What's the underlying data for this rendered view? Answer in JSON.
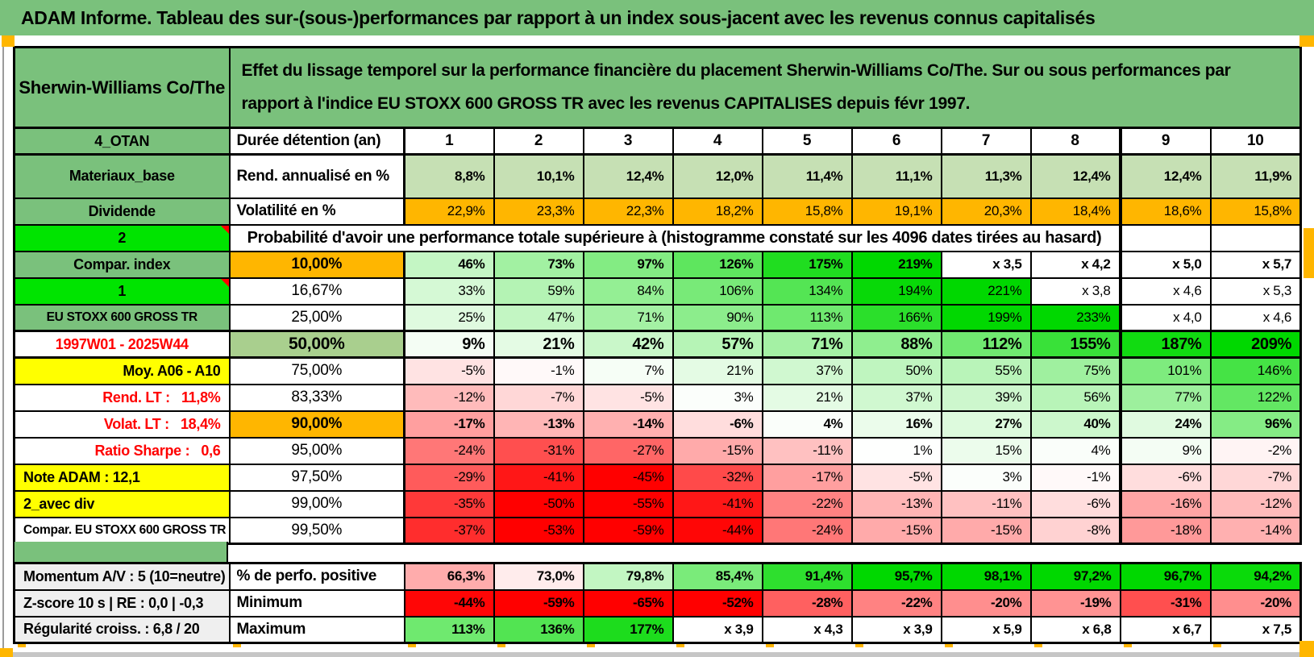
{
  "palette": {
    "header_green": "#7AC17C",
    "label_green": "#7AC17C",
    "sage": "#A9CF8E",
    "light_green": "#C6E0B4",
    "bright_green": "#00E400",
    "orange": "#FFB600",
    "yellow": "#FFFF00",
    "gray_label": "#EFEFEF",
    "red_text": "#FF0000",
    "pos_end": "#00D800",
    "neg_end": "#FF0000",
    "bottom_bar": "#C6C6C6",
    "edge_line": "#9B9B9B"
  },
  "title": "ADAM Informe. Tableau des sur-(sous-)performances par rapport à un index sous-jacent avec les revenus connus capitalisés",
  "workbook": {
    "stock_name": "Sherwin-Williams Co/The",
    "description": "Effet du lissage temporel sur la performance financière du placement Sherwin-Williams Co/The. Sur ou sous performances par rapport à l'indice EU STOXX 600 GROSS TR avec les revenus CAPITALISES depuis févr 1997."
  },
  "table": {
    "rows": [
      {
        "header": true,
        "bold": true,
        "cell_bg": "white",
        "left": {
          "text": "4_OTAN",
          "bg": "green"
        },
        "mid": {
          "text": "Durée détention (an)",
          "align": "left",
          "bold": true
        },
        "cells": [
          "1",
          "2",
          "3",
          "4",
          "5",
          "6",
          "7",
          "8",
          "9",
          "10"
        ]
      },
      {
        "tall": true,
        "bold": true,
        "cell_bg": "lightgreen",
        "left": {
          "text": "Materiaux_base",
          "bg": "green"
        },
        "mid": {
          "text": "Rend. annualisé en %",
          "align": "left",
          "bold": true
        },
        "cells": [
          "8,8%",
          "10,1%",
          "12,4%",
          "12,0%",
          "11,4%",
          "11,1%",
          "11,3%",
          "12,4%",
          "12,4%",
          "11,9%"
        ]
      },
      {
        "cell_bg": "orange",
        "left": {
          "text": "Dividende",
          "bg": "green"
        },
        "mid": {
          "text": "Volatilité en %",
          "align": "left",
          "bold": true
        },
        "cells": [
          "22,9%",
          "23,3%",
          "22,3%",
          "18,2%",
          "15,8%",
          "19,1%",
          "20,3%",
          "18,4%",
          "18,6%",
          "15,8%"
        ]
      },
      {
        "type": "merged",
        "left": {
          "text": "2",
          "bg": "bright",
          "marker": true
        },
        "merged": "Probabilité d'avoir une performance totale supérieure à (histogramme constaté sur les 4096 dates tirées au hasard)"
      },
      {
        "bold": true,
        "scale": "main",
        "left": {
          "text": "Compar. index",
          "bg": "green"
        },
        "mid": {
          "text": "10,00%",
          "bg": "orangebg",
          "bold": true
        },
        "cells": [
          "46%",
          "73%",
          "97%",
          "126%",
          "175%",
          "219%",
          "x 3,5",
          "x 4,2",
          "x 5,0",
          "x 5,7"
        ]
      },
      {
        "scale": "main",
        "left": {
          "text": "1",
          "bg": "bright",
          "marker": true
        },
        "mid": {
          "text": "16,67%"
        },
        "cells": [
          "33%",
          "59%",
          "84%",
          "106%",
          "134%",
          "194%",
          "221%",
          "x 3,8",
          "x 4,6",
          "x 5,3"
        ]
      },
      {
        "scale": "main",
        "left": {
          "text": "EU STOXX 600 GROSS TR",
          "bg": "green",
          "small": true
        },
        "mid": {
          "text": "25,00%"
        },
        "cells": [
          "25%",
          "47%",
          "71%",
          "90%",
          "113%",
          "166%",
          "199%",
          "233%",
          "x 4,0",
          "x 4,6"
        ]
      },
      {
        "big": true,
        "bold": true,
        "scale": "main",
        "left": {
          "text": "1997W01 - 2025W44",
          "bg": "whitebg",
          "color": "red"
        },
        "mid": {
          "text": "50,00%",
          "bg": "sage",
          "bold": true,
          "big": true
        },
        "cells": [
          "9%",
          "21%",
          "42%",
          "57%",
          "71%",
          "88%",
          "112%",
          "155%",
          "187%",
          "209%"
        ]
      },
      {
        "scale": "main",
        "left": {
          "text": "Moy. A06 - A10",
          "bg": "yellow",
          "align": "right"
        },
        "mid": {
          "text": "75,00%"
        },
        "cells": [
          "-5%",
          "-1%",
          "7%",
          "21%",
          "37%",
          "50%",
          "55%",
          "75%",
          "101%",
          "146%"
        ]
      },
      {
        "scale": "main",
        "left": {
          "text": "Rend. LT :   11,8%",
          "bg": "whitebg",
          "color": "red",
          "align": "right"
        },
        "mid": {
          "text": "83,33%"
        },
        "cells": [
          "-12%",
          "-7%",
          "-5%",
          "3%",
          "21%",
          "37%",
          "39%",
          "56%",
          "77%",
          "122%"
        ]
      },
      {
        "bold": true,
        "scale": "main",
        "left": {
          "text": "Volat. LT :   18,4%",
          "bg": "whitebg",
          "color": "red",
          "align": "right"
        },
        "mid": {
          "text": "90,00%",
          "bg": "orangebg",
          "bold": true
        },
        "cells": [
          "-17%",
          "-13%",
          "-14%",
          "-6%",
          "4%",
          "16%",
          "27%",
          "40%",
          "24%",
          "96%"
        ]
      },
      {
        "scale": "main",
        "left": {
          "text": "Ratio Sharpe :   0,6",
          "bg": "whitebg",
          "color": "red",
          "align": "right"
        },
        "mid": {
          "text": "95,00%"
        },
        "cells": [
          "-24%",
          "-31%",
          "-27%",
          "-15%",
          "-11%",
          "1%",
          "15%",
          "4%",
          "9%",
          "-2%"
        ]
      },
      {
        "scale": "main",
        "left": {
          "text": "Note ADAM : 12,1",
          "bg": "yellow",
          "align": "left"
        },
        "mid": {
          "text": "97,50%"
        },
        "cells": [
          "-29%",
          "-41%",
          "-45%",
          "-32%",
          "-17%",
          "-5%",
          "3%",
          "-1%",
          "-6%",
          "-7%"
        ]
      },
      {
        "scale": "main",
        "left": {
          "text": "2_avec div",
          "bg": "yellow",
          "align": "left"
        },
        "mid": {
          "text": "99,00%"
        },
        "cells": [
          "-35%",
          "-50%",
          "-55%",
          "-41%",
          "-22%",
          "-13%",
          "-11%",
          "-6%",
          "-16%",
          "-12%"
        ]
      },
      {
        "scale": "main",
        "left": {
          "text": "Compar. EU STOXX 600 GROSS TR",
          "bg": "whitebg",
          "align": "left",
          "small": true
        },
        "mid": {
          "text": "99,50%"
        },
        "cells": [
          "-37%",
          "-53%",
          "-59%",
          "-44%",
          "-24%",
          "-15%",
          "-15%",
          "-8%",
          "-18%",
          "-14%"
        ]
      }
    ]
  },
  "bottom": {
    "rows": [
      {
        "bold": true,
        "scale": "perfo",
        "left": {
          "text": "Momentum A/V : 5 (10=neutre)",
          "bg": "graybg",
          "align": "left"
        },
        "mid": {
          "text": "% de perfo. positive",
          "align": "left",
          "bold": true
        },
        "cells": [
          "66,3%",
          "73,0%",
          "79,8%",
          "85,4%",
          "91,4%",
          "95,7%",
          "98,1%",
          "97,2%",
          "96,7%",
          "94,2%"
        ]
      },
      {
        "bold": true,
        "scale": "main",
        "left": {
          "text": "Z-score 10 s | RE : 0,0 | -0,3",
          "bg": "graybg",
          "align": "left"
        },
        "mid": {
          "text": "Minimum",
          "align": "left",
          "bold": true
        },
        "cells": [
          "-44%",
          "-59%",
          "-65%",
          "-52%",
          "-28%",
          "-22%",
          "-20%",
          "-19%",
          "-31%",
          "-20%"
        ]
      },
      {
        "bold": true,
        "scale": "main",
        "left": {
          "text": "Régularité croiss. : 6,8 / 20",
          "bg": "graybg",
          "align": "left"
        },
        "mid": {
          "text": "Maximum",
          "align": "left",
          "bold": true
        },
        "cells": [
          "113%",
          "136%",
          "177%",
          "x 3,9",
          "x 4,3",
          "x 3,9",
          "x 5,9",
          "x 6,8",
          "x 6,7",
          "x 7,5"
        ]
      }
    ]
  }
}
